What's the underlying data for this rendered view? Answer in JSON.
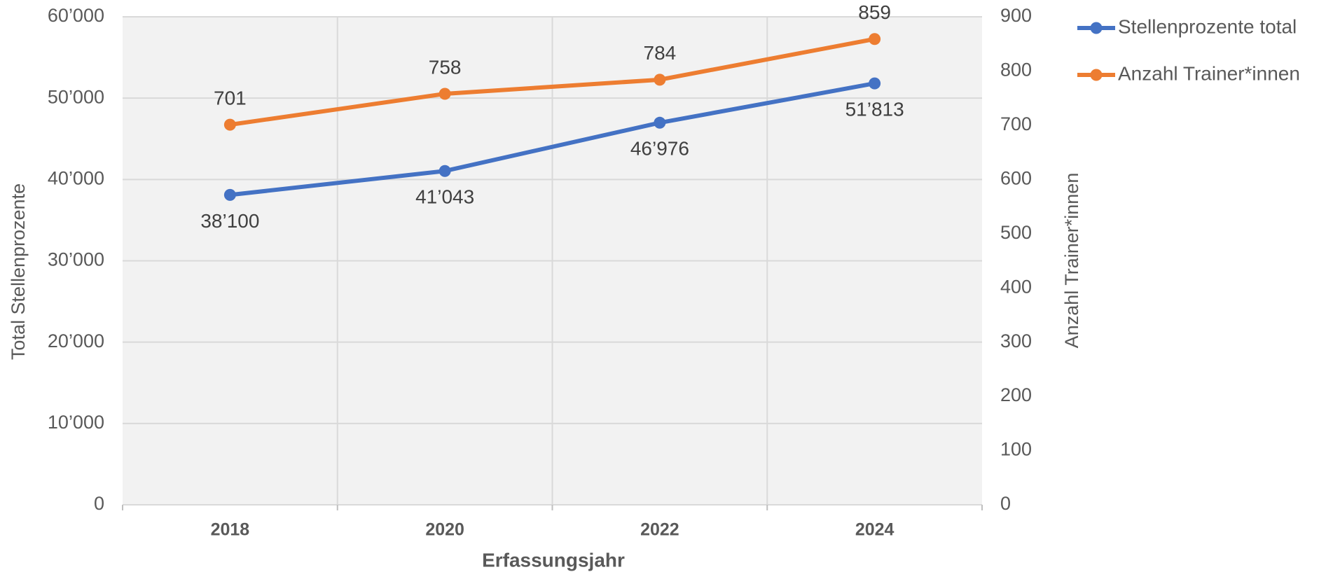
{
  "chart_data": {
    "type": "line",
    "x_label": "Erfassungsjahr",
    "y_label": "Total Stellenprozente",
    "y2_label": "Anzahl Trainer*innen",
    "categories": [
      "2018",
      "2020",
      "2022",
      "2024"
    ],
    "series": [
      {
        "name": "Stellenprozente total",
        "color": "#4472c4",
        "values": [
          38100,
          41043,
          46976,
          51813
        ],
        "value_labels": [
          "38’100",
          "41’043",
          "46’976",
          "51’813"
        ]
      },
      {
        "name": "Anzahl Trainer*innen",
        "color": "#ed7d31",
        "axis": "y2",
        "values": [
          701,
          758,
          784,
          859
        ]
      }
    ],
    "ylim": [
      0,
      60000
    ],
    "yticks": [
      0,
      {
        "value": 10000,
        "label": "10’000"
      },
      {
        "value": 20000,
        "label": "20’000"
      },
      {
        "value": 30000,
        "label": "30’000"
      },
      {
        "value": 40000,
        "label": "40’000"
      },
      {
        "value": 50000,
        "label": "50’000"
      },
      {
        "value": 60000,
        "label": "60’000"
      }
    ],
    "y2lim": [
      0,
      900
    ],
    "y2ticks": [
      0,
      100,
      200,
      300,
      400,
      500,
      600,
      700,
      800,
      900
    ],
    "grid": true,
    "legend": "right"
  }
}
